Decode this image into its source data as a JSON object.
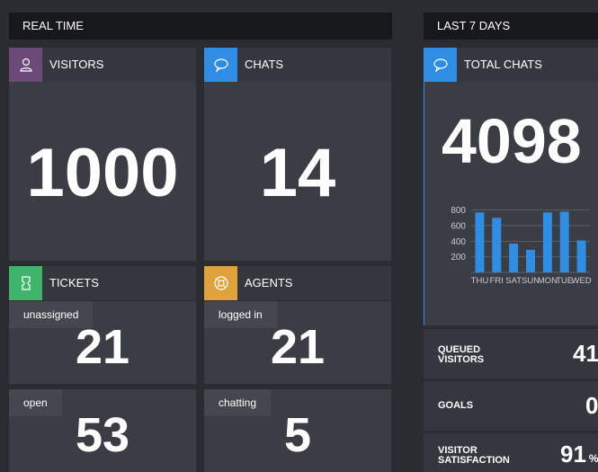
{
  "realtime": {
    "header": "REAL TIME",
    "visitors": {
      "label": "VISITORS",
      "value": "1000",
      "icon": "user-icon",
      "color": "#6b4a7a"
    },
    "chats": {
      "label": "CHATS",
      "value": "14",
      "icon": "chat-bubble-icon",
      "color": "#2f8de4"
    },
    "tickets": {
      "label": "TICKETS",
      "icon": "ticket-icon",
      "color": "#3fb56b",
      "unassigned_label": "unassigned",
      "unassigned_value": "21",
      "open_label": "open",
      "open_value": "53"
    },
    "agents": {
      "label": "AGENTS",
      "icon": "lifebuoy-icon",
      "color": "#e0a23a",
      "logged_in_label": "logged in",
      "logged_in_value": "21",
      "chatting_label": "chatting",
      "chatting_value": "5"
    }
  },
  "last7": {
    "header": "LAST 7 DAYS",
    "total_chats": {
      "label": "TOTAL CHATS",
      "value": "4098",
      "icon": "chat-bubble-icon",
      "color": "#2f8de4"
    },
    "metrics": {
      "queued_line1": "QUEUED",
      "queued_line2": "VISITORS",
      "queued_value": "41",
      "goals_label": "GOALS",
      "goals_value": "0",
      "satisfaction_line1": "VISITOR",
      "satisfaction_line2": "SATISFACTION",
      "satisfaction_value": "91",
      "satisfaction_unit": "%"
    }
  },
  "chart_data": {
    "type": "bar",
    "categories": [
      "THU",
      "FRI",
      "SAT",
      "SUN",
      "MON",
      "TUE",
      "WED"
    ],
    "values": [
      770,
      700,
      370,
      290,
      770,
      780,
      410
    ],
    "yticks": [
      "200",
      "400",
      "600",
      "800"
    ],
    "ylim": [
      0,
      900
    ],
    "grid": true,
    "bar_color": "#2f8de4"
  }
}
